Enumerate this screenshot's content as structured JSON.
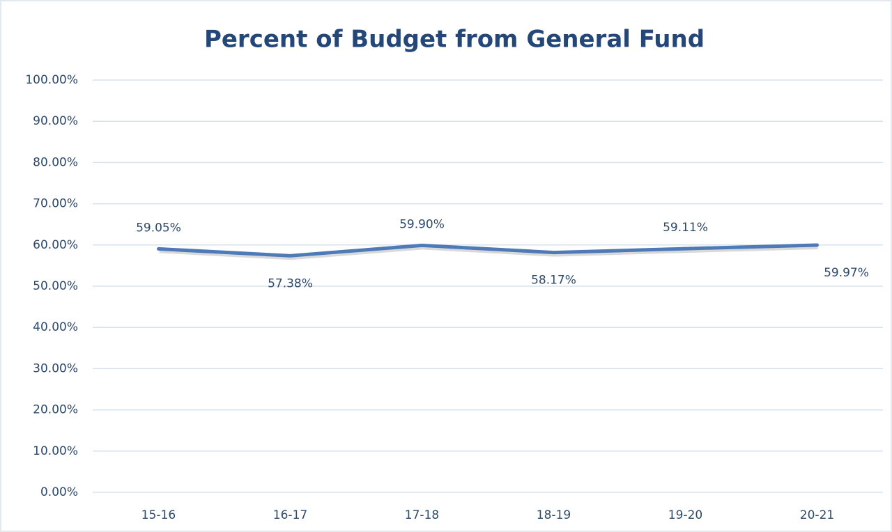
{
  "chart_data": {
    "type": "line",
    "title": "Percent of Budget from General Fund",
    "categories": [
      "15-16",
      "16-17",
      "17-18",
      "18-19",
      "19-20",
      "20-21"
    ],
    "series": [
      {
        "name": "Percent of Budget from General Fund",
        "color": "#4f7ab8",
        "values": [
          59.05,
          57.38,
          59.9,
          58.17,
          59.11,
          59.97
        ],
        "value_labels": [
          "59.05%",
          "57.38%",
          "59.90%",
          "58.17%",
          "59.11%",
          "59.97%"
        ]
      }
    ],
    "ylim": [
      0,
      100
    ],
    "yticks": [
      {
        "value": 0,
        "label": "0.00%"
      },
      {
        "value": 10,
        "label": "10.00%"
      },
      {
        "value": 20,
        "label": "20.00%"
      },
      {
        "value": 30,
        "label": "30.00%"
      },
      {
        "value": 40,
        "label": "40.00%"
      },
      {
        "value": 50,
        "label": "50.00%"
      },
      {
        "value": 60,
        "label": "60.00%"
      },
      {
        "value": 70,
        "label": "70.00%"
      },
      {
        "value": 80,
        "label": "80.00%"
      },
      {
        "value": 90,
        "label": "90.00%"
      },
      {
        "value": 100,
        "label": "100.00%"
      }
    ],
    "grid": true
  }
}
